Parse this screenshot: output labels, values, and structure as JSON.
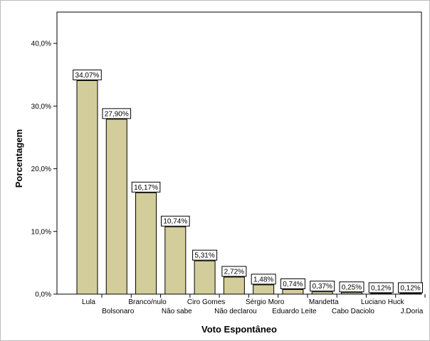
{
  "chart_data": {
    "type": "bar",
    "xlabel": "Voto Espontâneo",
    "ylabel": "Porcentagem",
    "ylim": [
      0,
      45
    ],
    "yticks": [
      0,
      10,
      20,
      30,
      40
    ],
    "ytick_labels": [
      "0,0%",
      "10,0%",
      "20,0%",
      "30,0%",
      "40,0%"
    ],
    "categories": [
      "Lula",
      "Bolsonaro",
      "Branco/nulo",
      "Não sabe",
      "Ciro Gomes",
      "Não declarou",
      "Sérgio Moro",
      "Eduardo Leite",
      "Mandetta",
      "Cabo Daciolo",
      "Luciano Huck",
      "J.Doria"
    ],
    "values": [
      34.07,
      27.9,
      16.17,
      10.74,
      5.31,
      2.72,
      1.48,
      0.74,
      0.37,
      0.25,
      0.12,
      0.12
    ],
    "value_labels": [
      "34,07%",
      "27,90%",
      "16,17%",
      "10,74%",
      "5,31%",
      "2,72%",
      "1,48%",
      "0,74%",
      "0,37%",
      "0,25%",
      "0,12%",
      "0,12%"
    ],
    "bar_color": "#d3cd9b",
    "grid": false,
    "legend": false
  }
}
